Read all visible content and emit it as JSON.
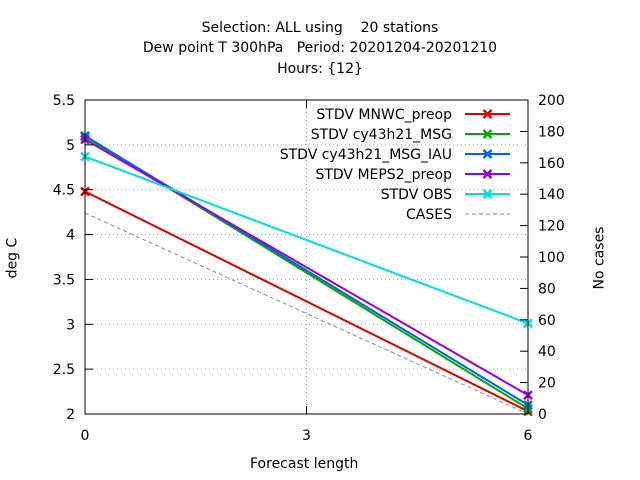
{
  "chart_data": {
    "type": "line",
    "title_lines": [
      "Selection: ALL using    20 stations",
      "Dew point T 300hPa   Period: 20201204-20201210",
      "Hours: {12}"
    ],
    "xlabel": "Forecast length",
    "ylabel": "deg C",
    "y2label": "No cases",
    "x": [
      0,
      6
    ],
    "xticks": [
      "0",
      "3",
      "6"
    ],
    "xlim": [
      0,
      6
    ],
    "ylim": [
      2,
      5.5
    ],
    "yticks": [
      "2",
      "2.5",
      "3",
      "3.5",
      "4",
      "4.5",
      "5",
      "5.5"
    ],
    "y2lim": [
      0,
      200
    ],
    "y2ticks": [
      "0",
      "20",
      "40",
      "60",
      "80",
      "100",
      "120",
      "140",
      "160",
      "180",
      "200"
    ],
    "grid": true,
    "legend_position": "top-right",
    "series": [
      {
        "name": "STDV MNWC_preop",
        "axis": "y",
        "color": "#dd0000",
        "marker": "x",
        "values": [
          4.48,
          2.03
        ]
      },
      {
        "name": "STDV cy43h21_MSG",
        "axis": "y",
        "color": "#00aa00",
        "marker": "x",
        "values": [
          5.09,
          2.06
        ]
      },
      {
        "name": "STDV cy43h21_MSG_IAU",
        "axis": "y",
        "color": "#0066dd",
        "marker": "x",
        "values": [
          5.1,
          2.1
        ]
      },
      {
        "name": "STDV MEPS2_preop",
        "axis": "y",
        "color": "#9900dd",
        "marker": "x",
        "values": [
          5.06,
          2.21
        ]
      },
      {
        "name": "STDV OBS",
        "axis": "y",
        "color": "#00dddd",
        "marker": "x",
        "values": [
          4.87,
          3.01
        ]
      },
      {
        "name": "CASES",
        "axis": "y2",
        "color": "#888888",
        "marker": "none",
        "dashed": true,
        "values": [
          128,
          0
        ]
      }
    ]
  }
}
